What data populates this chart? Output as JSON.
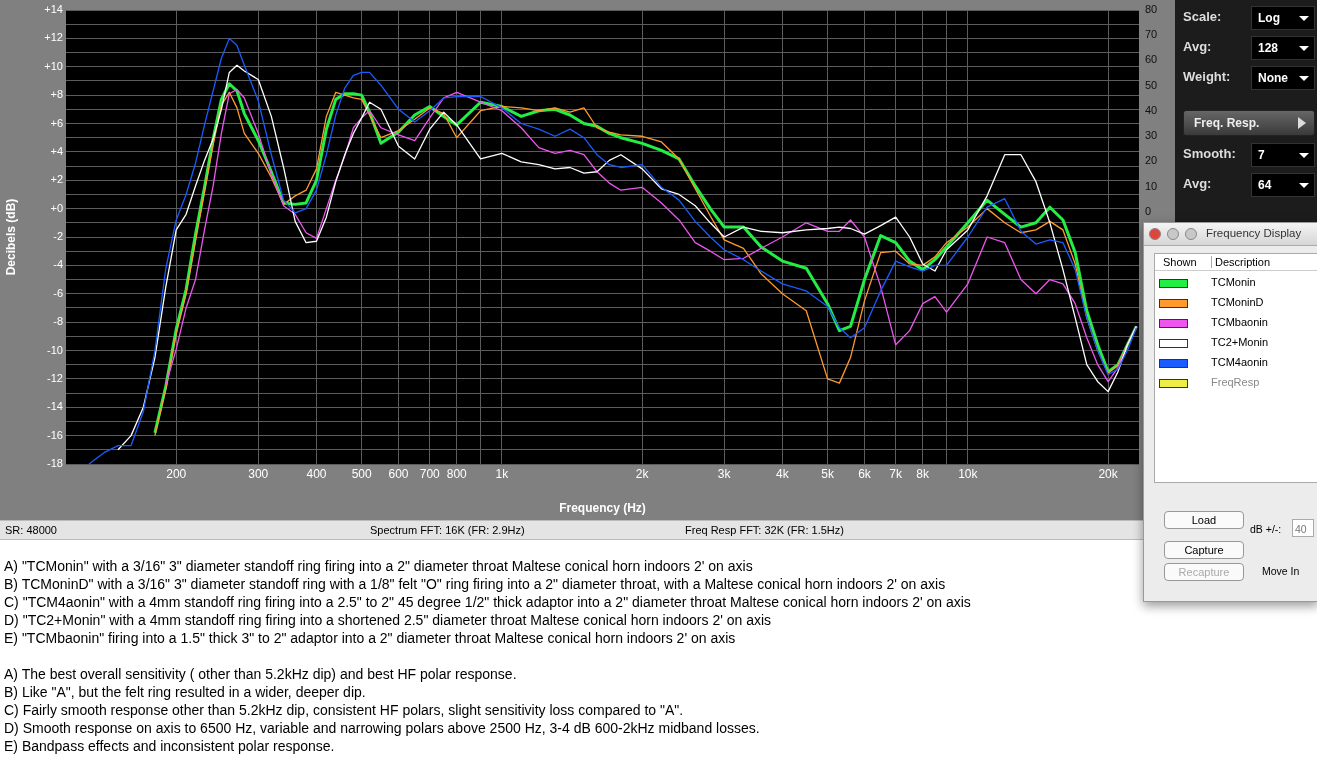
{
  "chart_data": {
    "type": "line",
    "xlabel": "Frequency (Hz)",
    "ylabel": "Decibels (dB)",
    "x": [
      130,
      140,
      150,
      160,
      170,
      180,
      190,
      200,
      210,
      220,
      230,
      240,
      250,
      260,
      270,
      280,
      300,
      320,
      340,
      360,
      380,
      400,
      420,
      440,
      460,
      480,
      500,
      520,
      550,
      600,
      650,
      700,
      750,
      800,
      900,
      1000,
      1100,
      1200,
      1300,
      1400,
      1500,
      1600,
      1700,
      1800,
      2000,
      2200,
      2400,
      2600,
      2800,
      3000,
      3300,
      3600,
      4000,
      4500,
      5000,
      5300,
      5600,
      6000,
      6500,
      7000,
      7500,
      8000,
      8500,
      9000,
      10000,
      11000,
      12000,
      13000,
      14000,
      15000,
      16000,
      17000,
      18000,
      19000,
      20000,
      21000,
      22000,
      23000
    ],
    "series": [
      {
        "name": "TCMonin",
        "color": "#22ee44",
        "values": [
          null,
          null,
          null,
          null,
          null,
          -15.8,
          -12.5,
          -8.5,
          -5.7,
          -1.8,
          1.5,
          4.9,
          7.7,
          8.8,
          8.3,
          6.7,
          4.8,
          2.6,
          0.4,
          0.3,
          0.4,
          2.0,
          5.6,
          7.7,
          8.1,
          8.1,
          8.0,
          6.8,
          4.6,
          5.4,
          6.6,
          7.2,
          6.5,
          5.9,
          7.5,
          7.2,
          6.5,
          6.9,
          7.0,
          6.6,
          6.0,
          5.8,
          5.3,
          5.0,
          4.6,
          4.1,
          3.5,
          1.6,
          0,
          -1.3,
          -1.3,
          -2.7,
          -3.7,
          -4.2,
          -6.7,
          -8.6,
          -8.3,
          -5.0,
          -1.9,
          -2.4,
          -3.7,
          -4.3,
          -3.6,
          -2.7,
          -1.0,
          0.6,
          -0.4,
          -1.3,
          -1.0,
          0.1,
          -0.8,
          -3.1,
          -7.2,
          -9.6,
          -11.5,
          -11.0,
          -9.6,
          -8.3
        ]
      },
      {
        "name": "TCMoninD",
        "color": "#ff9a2e",
        "values": [
          null,
          null,
          null,
          null,
          null,
          -16.0,
          -12.7,
          -8.8,
          -6.0,
          -2.3,
          1.2,
          4.5,
          7.3,
          8.2,
          7.1,
          5.3,
          3.9,
          2.2,
          0.3,
          0.9,
          1.3,
          2.8,
          6.5,
          8.2,
          8.0,
          7.8,
          7.7,
          6.6,
          5.0,
          5.5,
          6.3,
          7.1,
          6.7,
          5.0,
          6.9,
          7.2,
          7.1,
          6.9,
          7.1,
          6.8,
          7.1,
          5.7,
          5.4,
          5.2,
          5.1,
          4.7,
          3.5,
          1.4,
          -0.5,
          -2.2,
          -2.8,
          -4.6,
          -6.0,
          -7.2,
          -12.0,
          -12.3,
          -10.5,
          -6.5,
          -3.1,
          -3.0,
          -3.9,
          -4.0,
          -3.4,
          -2.4,
          -1.3,
          0,
          -1.0,
          -1.7,
          -1.5,
          -0.9,
          -1.5,
          -3.9,
          -7.7,
          -10.0,
          -11.6,
          -11.0,
          -9.6,
          -8.3
        ]
      },
      {
        "name": "TCMbaonin",
        "color": "#ee55ee",
        "values": [
          null,
          null,
          null,
          null,
          null,
          null,
          -12.4,
          -9.9,
          -7.0,
          -5.0,
          -1.5,
          1.6,
          5.3,
          8.1,
          8.4,
          7.8,
          5.3,
          2.4,
          0.2,
          -0.4,
          -1.7,
          -2.1,
          0,
          2.0,
          3.7,
          5.7,
          6.4,
          6.9,
          5.7,
          5.2,
          4.8,
          6.4,
          7.8,
          8.2,
          7.5,
          6.9,
          5.7,
          4.3,
          3.9,
          4.1,
          3.8,
          2.6,
          1.8,
          1.3,
          1.5,
          0.4,
          -0.8,
          -2.4,
          -3.0,
          -3.6,
          -3.5,
          -2.8,
          -2.0,
          -1.0,
          -1.6,
          -1.6,
          -0.8,
          -2.0,
          -5.5,
          -9.6,
          -8.6,
          -6.7,
          -6.2,
          -7.3,
          -5.3,
          -2.0,
          -2.4,
          -5.0,
          -6.0,
          -5.0,
          -5.3,
          -6.7,
          -9.1,
          -11.0,
          -12.2,
          -11.2,
          -9.6,
          -8.3
        ]
      },
      {
        "name": "TC2+Monin",
        "color": "#ffffff",
        "values": [
          null,
          null,
          -17.0,
          -16.0,
          -14.0,
          -10.5,
          -5.5,
          -1.5,
          -0.4,
          1.6,
          3.4,
          4.9,
          7.0,
          9.6,
          10.1,
          9.7,
          9.1,
          6.5,
          2.9,
          -0.9,
          -2.4,
          -2.3,
          -0.6,
          1.9,
          3.8,
          5.3,
          6.4,
          7.5,
          7.0,
          4.4,
          3.5,
          5.6,
          6.8,
          5.9,
          3.5,
          3.9,
          3.3,
          3.1,
          2.8,
          2.9,
          2.5,
          2.6,
          3.4,
          3.8,
          2.8,
          1.4,
          1.0,
          0.2,
          -1.0,
          -2.0,
          -1.3,
          -1.6,
          -1.7,
          -1.5,
          -1.4,
          -1.3,
          -1.4,
          -1.8,
          -1.2,
          -0.6,
          -2.0,
          -3.9,
          -4.4,
          -2.9,
          -1.5,
          0.9,
          3.8,
          3.8,
          1.9,
          -1.0,
          -4.3,
          -7.7,
          -11.0,
          -12.2,
          -12.9,
          -11.5,
          -9.6,
          -8.3
        ]
      },
      {
        "name": "TCM4aonin",
        "color": "#1a5cff",
        "values": [
          -18.0,
          -17.2,
          -16.7,
          -16.7,
          -14.3,
          -10.0,
          -4.2,
          -0.8,
          1.0,
          3.2,
          5.9,
          8.3,
          10.6,
          12.0,
          11.5,
          10.1,
          7.6,
          3.8,
          0.6,
          -0.3,
          0,
          1.3,
          3.8,
          6.6,
          8.5,
          9.4,
          9.6,
          9.6,
          8.7,
          7.0,
          6.1,
          6.9,
          7.8,
          7.9,
          7.9,
          7.1,
          6.0,
          5.6,
          5.1,
          5.6,
          5.0,
          3.8,
          3.1,
          2.9,
          3.1,
          1.5,
          0.6,
          -0.9,
          -2.0,
          -2.9,
          -3.6,
          -4.4,
          -5.3,
          -5.8,
          -6.9,
          -8.4,
          -9.1,
          -8.4,
          -5.8,
          -3.7,
          -4.1,
          -4.4,
          -4.0,
          -4.0,
          -2.0,
          0.1,
          0.7,
          -1.6,
          -2.5,
          -2.2,
          -2.4,
          -4.3,
          -7.7,
          -10.0,
          -11.7,
          -11.3,
          -10.0,
          -8.4
        ]
      },
      {
        "name": "FreqResp",
        "color": "#eeee44",
        "values": [
          null,
          null,
          null,
          null,
          null,
          null,
          null,
          null,
          null,
          null,
          null,
          null,
          null,
          null,
          null,
          null,
          null,
          null,
          null,
          null,
          null,
          null,
          null,
          null,
          null,
          null,
          null,
          null,
          null,
          null,
          null,
          null,
          null,
          null,
          null,
          null,
          null,
          null,
          null,
          null,
          null,
          null,
          null,
          null,
          null,
          null,
          null,
          null,
          null,
          null,
          null,
          null,
          null,
          null,
          null,
          null,
          null,
          null,
          null,
          null,
          null,
          null,
          null,
          null,
          null,
          null,
          null,
          null,
          null,
          null,
          null,
          null,
          null,
          null,
          null,
          null,
          null,
          null
        ]
      }
    ],
    "xlim": [
      116,
      23300
    ],
    "xticks": [
      200,
      300,
      400,
      500,
      600,
      700,
      800,
      {
        "value": 900,
        "label": null
      },
      {
        "value": 1000,
        "label": "1k"
      },
      {
        "value": 2000,
        "label": "2k"
      },
      {
        "value": 3000,
        "label": "3k"
      },
      {
        "value": 4000,
        "label": "4k"
      },
      {
        "value": 5000,
        "label": "5k"
      },
      {
        "value": 6000,
        "label": "6k"
      },
      {
        "value": 7000,
        "label": "7k"
      },
      {
        "value": 8000,
        "label": "8k"
      },
      {
        "value": 9000,
        "label": null
      },
      {
        "value": 10000,
        "label": "10k"
      },
      {
        "value": 20000,
        "label": "20k"
      }
    ],
    "ylim": [
      -18,
      14
    ],
    "yticks": [
      {
        "value": 14,
        "label": "+14"
      },
      {
        "value": 13,
        "label": null
      },
      {
        "value": 12,
        "label": "+12"
      },
      {
        "value": 11,
        "label": null
      },
      {
        "value": 10,
        "label": "+10"
      },
      {
        "value": 9,
        "label": null
      },
      {
        "value": 8,
        "label": "+8"
      },
      {
        "value": 7,
        "label": null
      },
      {
        "value": 6,
        "label": "+6"
      },
      {
        "value": 5,
        "label": null
      },
      {
        "value": 4,
        "label": "+4"
      },
      {
        "value": 3,
        "label": null
      },
      {
        "value": 2,
        "label": "+2"
      },
      {
        "value": 1,
        "label": null
      },
      {
        "value": 0,
        "label": "+0"
      },
      {
        "value": -1,
        "label": null
      },
      {
        "value": -2,
        "label": "-2"
      },
      {
        "value": -3,
        "label": null
      },
      {
        "value": -4,
        "label": "-4"
      },
      {
        "value": -5,
        "label": null
      },
      {
        "value": -6,
        "label": "-6"
      },
      {
        "value": -7,
        "label": null
      },
      {
        "value": -8,
        "label": "-8"
      },
      {
        "value": -9,
        "label": null
      },
      {
        "value": -10,
        "label": "-10"
      },
      {
        "value": -11,
        "label": null
      },
      {
        "value": -12,
        "label": "-12"
      },
      {
        "value": -13,
        "label": null
      },
      {
        "value": -14,
        "label": "-14"
      },
      {
        "value": -15,
        "label": null
      },
      {
        "value": -16,
        "label": "-16"
      },
      {
        "value": -17,
        "label": null
      },
      {
        "value": -18,
        "label": "-18"
      }
    ],
    "y2lim": [
      -100,
      80
    ],
    "y2ticks": [
      0,
      10,
      20,
      30,
      40,
      50,
      60,
      70,
      80
    ],
    "log": "x",
    "grid": true,
    "legend": "right",
    "marker": "none",
    "annotations": [
      "SR: 48000",
      "Spectrum FFT: 16K (FR: 2.9Hz)",
      "Freq Resp FFT: 32K (FR: 1.5Hz)",
      "Scale:",
      "Log",
      "Avg:",
      "128",
      "Weight:",
      "None",
      "Freq. Resp.",
      "Smooth:",
      "7",
      "Avg:",
      "64",
      "Frequency Display",
      "Shown",
      "Description",
      "Load",
      "Capture",
      "Recapture",
      "dB +/-:",
      "40",
      "Move In",
      "A) \"TCMonin\" with a 3/16\" 3\" diameter standoff ring firing into a 2\" diameter throat Maltese conical horn indoors 2' on axis",
      "B) TCMoninD\" with a 3/16\" 3\" diameter standoff ring with a 1/8\" felt \"O\" ring firing into a 2\" diameter throat, with a Maltese conical horn indoors 2' on axis",
      "C) \"TCM4aonin\" with a 4mm standoff ring firing into a 2.5\" to 2\" 45 degree 1/2\" thick adaptor into a 2\" diameter throat Maltese conical horn indoors 2' on axis",
      "D) \"TC2+Monin\" with a 4mm standoff ring firing into a shortened 2.5\" diameter throat Maltese conical horn indoors 2' on axis",
      "E) \"TCMbaonin\" firing into a 1.5\" thick 3\" to 2\" adaptor into a 2\" diameter throat Maltese conical horn indoors 2' on axis",
      "A) The best overall sensitivity ( other than 5.2kHz dip) and best HF polar response.",
      "B) Like \"A\", but the felt ring resulted in a wider, deeper dip.",
      "C) Fairly smooth response other than 5.2kHz dip, consistent HF polars, slight sensitivity loss compared to \"A\".",
      "D) Smooth response on axis to 6500 Hz, variable and narrowing polars above 2500 Hz, 3-4 dB 600-2kHz midband losses.",
      "E) Bandpass effects and inconsistent polar response."
    ]
  }
}
